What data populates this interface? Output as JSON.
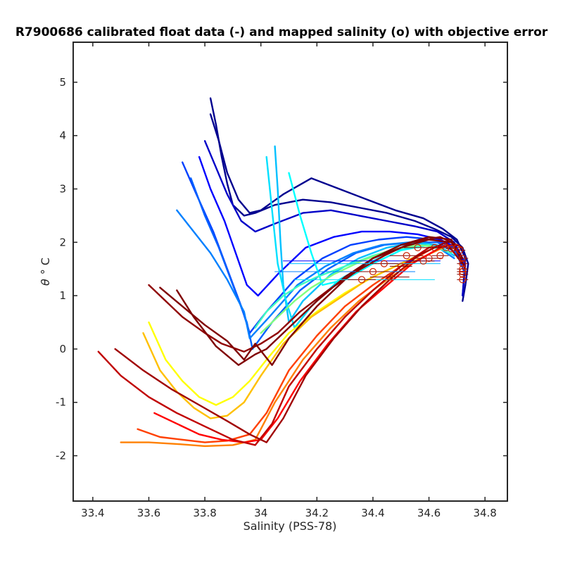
{
  "chart_data": {
    "type": "line",
    "title": "R7900686 calibrated float data (-) and mapped salinity (o) with objective error",
    "xlabel": "Salinity (PSS-78)",
    "ylabel_symbol": "θ",
    "ylabel_unit": "° C",
    "xlim": [
      33.33,
      34.88
    ],
    "ylim": [
      -2.85,
      5.75
    ],
    "xticks": [
      33.4,
      33.6,
      33.8,
      34,
      34.2,
      34.4,
      34.6,
      34.8
    ],
    "xtick_labels": [
      "33.4",
      "33.6",
      "33.8",
      "34",
      "34.2",
      "34.4",
      "34.6",
      "34.8"
    ],
    "yticks": [
      -2,
      -1,
      0,
      1,
      2,
      3,
      4,
      5
    ],
    "ytick_labels": [
      "-2",
      "-1",
      "0",
      "1",
      "2",
      "3",
      "4",
      "5"
    ],
    "grid": false,
    "legend": "none",
    "colormap": [
      "#00008f",
      "#0000ff",
      "#0080ff",
      "#00ffff",
      "#80ff80",
      "#ffff00",
      "#ff8000",
      "#ff0000",
      "#800000"
    ],
    "series": [
      {
        "color": "#00008f",
        "x": [
          33.82,
          33.84,
          33.86,
          33.88,
          33.9,
          33.94,
          33.98,
          34.05,
          34.15,
          34.25,
          34.35,
          34.45,
          34.55,
          34.62,
          34.68,
          34.72,
          34.74,
          34.73,
          34.72
        ],
        "y": [
          4.7,
          4.2,
          3.6,
          3.1,
          2.7,
          2.5,
          2.55,
          2.7,
          2.8,
          2.75,
          2.65,
          2.55,
          2.4,
          2.25,
          2.1,
          1.9,
          1.6,
          1.2,
          0.9
        ]
      },
      {
        "color": "#00008f",
        "x": [
          33.82,
          33.85,
          33.88,
          33.92,
          33.96,
          34.0,
          34.08,
          34.18,
          34.28,
          34.38,
          34.48,
          34.58,
          34.65,
          34.7,
          34.73,
          34.72
        ],
        "y": [
          4.4,
          3.9,
          3.3,
          2.8,
          2.55,
          2.6,
          2.9,
          3.2,
          3.0,
          2.8,
          2.6,
          2.45,
          2.25,
          2.05,
          1.7,
          1.0
        ]
      },
      {
        "color": "#0000c8",
        "x": [
          33.8,
          33.84,
          33.88,
          33.93,
          33.98,
          34.05,
          34.15,
          34.25,
          34.35,
          34.45,
          34.55,
          34.63,
          34.69,
          34.73,
          34.72
        ],
        "y": [
          3.9,
          3.4,
          2.9,
          2.4,
          2.2,
          2.35,
          2.55,
          2.6,
          2.5,
          2.4,
          2.3,
          2.2,
          2.0,
          1.6,
          1.0
        ]
      },
      {
        "color": "#0000ff",
        "x": [
          33.78,
          33.82,
          33.87,
          33.91,
          33.95,
          33.99,
          34.06,
          34.16,
          34.26,
          34.36,
          34.46,
          34.56,
          34.64,
          34.7,
          34.73
        ],
        "y": [
          3.6,
          3.0,
          2.4,
          1.8,
          1.2,
          1.0,
          1.4,
          1.9,
          2.1,
          2.2,
          2.2,
          2.15,
          2.05,
          1.9,
          1.5
        ]
      },
      {
        "color": "#0040ff",
        "x": [
          33.72,
          33.77,
          33.83,
          33.88,
          33.93,
          33.96,
          34.02,
          34.12,
          34.22,
          34.32,
          34.42,
          34.52,
          34.62,
          34.69,
          34.73
        ],
        "y": [
          3.5,
          2.9,
          2.2,
          1.5,
          0.8,
          0.3,
          0.7,
          1.3,
          1.7,
          1.95,
          2.05,
          2.1,
          2.05,
          1.9,
          1.4
        ]
      },
      {
        "color": "#0060ff",
        "x": [
          33.75,
          33.8,
          33.85,
          33.9,
          33.95,
          33.97,
          34.04,
          34.14,
          34.24,
          34.34,
          34.44,
          34.54,
          34.63,
          34.7
        ],
        "y": [
          3.2,
          2.5,
          1.9,
          1.2,
          0.5,
          0.0,
          0.5,
          1.1,
          1.5,
          1.8,
          1.95,
          2.0,
          2.0,
          1.8
        ]
      },
      {
        "color": "#0080ff",
        "x": [
          33.7,
          33.76,
          33.82,
          33.88,
          33.94,
          33.96,
          34.03,
          34.13,
          34.23,
          34.33,
          34.43,
          34.53,
          34.62,
          34.69
        ],
        "y": [
          2.6,
          2.2,
          1.8,
          1.3,
          0.7,
          0.2,
          0.6,
          1.2,
          1.55,
          1.8,
          1.95,
          2.0,
          1.95,
          1.7
        ]
      },
      {
        "color": "#00c0ff",
        "x": [
          34.05,
          34.06,
          34.07,
          34.08,
          34.1,
          34.15,
          34.25,
          34.35,
          34.45,
          34.55,
          34.63,
          34.69
        ],
        "y": [
          3.8,
          3.0,
          2.0,
          1.2,
          0.5,
          0.9,
          1.4,
          1.7,
          1.9,
          2.0,
          1.95,
          1.75
        ]
      },
      {
        "color": "#00e0ff",
        "x": [
          34.02,
          34.04,
          34.06,
          34.09,
          34.12,
          34.18,
          34.28,
          34.38,
          34.48,
          34.58,
          34.66
        ],
        "y": [
          3.6,
          2.6,
          1.6,
          0.9,
          0.4,
          0.8,
          1.3,
          1.6,
          1.85,
          1.95,
          1.85
        ]
      },
      {
        "color": "#00ffff",
        "x": [
          34.1,
          34.14,
          34.18,
          34.22,
          34.3,
          34.4,
          34.5,
          34.6,
          34.68
        ],
        "y": [
          3.3,
          2.5,
          1.8,
          1.2,
          1.3,
          1.6,
          1.85,
          1.95,
          1.8
        ]
      },
      {
        "color": "#40ffc0",
        "x": [
          33.98,
          34.02,
          34.08,
          34.14,
          34.2,
          34.3,
          34.4,
          34.5,
          34.6,
          34.68
        ],
        "y": [
          0.4,
          0.7,
          1.0,
          1.2,
          1.35,
          1.55,
          1.75,
          1.9,
          1.95,
          1.8
        ]
      },
      {
        "color": "#80ff80",
        "x": [
          34.0,
          34.06,
          34.12,
          34.18,
          34.26,
          34.36,
          34.46,
          34.56,
          34.65
        ],
        "y": [
          0.3,
          0.6,
          0.9,
          1.15,
          1.4,
          1.65,
          1.85,
          1.95,
          1.9
        ]
      },
      {
        "color": "#ffff00",
        "x": [
          33.6,
          33.66,
          33.72,
          33.78,
          33.84,
          33.9,
          33.96,
          34.02,
          34.1,
          34.2,
          34.3,
          34.4,
          34.5,
          34.6
        ],
        "y": [
          0.5,
          -0.2,
          -0.6,
          -0.9,
          -1.05,
          -0.9,
          -0.6,
          -0.2,
          0.3,
          0.7,
          1.05,
          1.35,
          1.6,
          1.85
        ]
      },
      {
        "color": "#ffc000",
        "x": [
          33.58,
          33.64,
          33.7,
          33.76,
          33.82,
          33.88,
          33.94,
          34.0,
          34.08,
          34.18,
          34.28,
          34.38,
          34.48,
          34.58
        ],
        "y": [
          0.3,
          -0.4,
          -0.8,
          -1.1,
          -1.3,
          -1.25,
          -1.0,
          -0.5,
          0.1,
          0.6,
          0.95,
          1.3,
          1.55,
          1.8
        ]
      },
      {
        "color": "#ff8000",
        "x": [
          33.5,
          33.6,
          33.7,
          33.8,
          33.9,
          33.98,
          34.05,
          34.15,
          34.25,
          34.35,
          34.45,
          34.55,
          34.65
        ],
        "y": [
          -1.75,
          -1.75,
          -1.78,
          -1.82,
          -1.8,
          -1.7,
          -1.0,
          -0.2,
          0.4,
          0.9,
          1.3,
          1.65,
          1.9
        ]
      },
      {
        "color": "#ff4000",
        "x": [
          33.56,
          33.64,
          33.72,
          33.8,
          33.88,
          33.96,
          34.02,
          34.1,
          34.2,
          34.3,
          34.4,
          34.5,
          34.6
        ],
        "y": [
          -1.5,
          -1.65,
          -1.7,
          -1.75,
          -1.72,
          -1.6,
          -1.2,
          -0.4,
          0.25,
          0.8,
          1.2,
          1.55,
          1.85
        ]
      },
      {
        "color": "#ff0000",
        "x": [
          33.62,
          33.7,
          33.78,
          33.86,
          33.94,
          34.0,
          34.06,
          34.14,
          34.24,
          34.34,
          34.44,
          34.54,
          34.64
        ],
        "y": [
          -1.2,
          -1.4,
          -1.6,
          -1.7,
          -1.75,
          -1.7,
          -1.3,
          -0.6,
          0.1,
          0.7,
          1.15,
          1.6,
          1.9
        ]
      },
      {
        "color": "#c00000",
        "x": [
          33.42,
          33.5,
          33.6,
          33.7,
          33.8,
          33.9,
          33.98,
          34.04,
          34.1,
          34.2,
          34.3,
          34.4,
          34.5,
          34.6,
          34.7
        ],
        "y": [
          -0.05,
          -0.5,
          -0.9,
          -1.2,
          -1.45,
          -1.7,
          -1.8,
          -1.4,
          -0.7,
          0.0,
          0.6,
          1.1,
          1.55,
          1.9,
          1.95
        ]
      },
      {
        "color": "#a00000",
        "x": [
          33.48,
          33.58,
          33.68,
          33.78,
          33.88,
          33.96,
          34.02,
          34.08,
          34.16,
          34.26,
          34.36,
          34.46,
          34.56,
          34.66,
          34.72
        ],
        "y": [
          0.0,
          -0.4,
          -0.75,
          -1.05,
          -1.35,
          -1.6,
          -1.75,
          -1.3,
          -0.5,
          0.2,
          0.8,
          1.3,
          1.75,
          2.0,
          1.6
        ]
      },
      {
        "color": "#900000",
        "x": [
          33.6,
          33.66,
          33.72,
          33.8,
          33.86,
          33.94,
          34.0,
          34.06,
          34.14,
          34.24,
          34.34,
          34.44,
          34.54,
          34.64,
          34.72
        ],
        "y": [
          1.2,
          0.9,
          0.6,
          0.3,
          0.1,
          -0.05,
          0.1,
          0.3,
          0.7,
          1.1,
          1.45,
          1.75,
          2.0,
          2.1,
          1.9
        ]
      },
      {
        "color": "#800000",
        "x": [
          33.64,
          33.72,
          33.8,
          33.88,
          33.94,
          33.98,
          34.04,
          34.1,
          34.2,
          34.3,
          34.4,
          34.5,
          34.6,
          34.68,
          34.73
        ],
        "y": [
          1.15,
          0.8,
          0.45,
          0.15,
          -0.2,
          0.1,
          -0.3,
          0.2,
          0.8,
          1.3,
          1.7,
          1.95,
          2.1,
          2.05,
          1.5
        ]
      },
      {
        "color": "#800000",
        "x": [
          33.7,
          33.76,
          33.84,
          33.92,
          33.98,
          34.02,
          34.1,
          34.2,
          34.3,
          34.4,
          34.5,
          34.6,
          34.68,
          34.72
        ],
        "y": [
          1.1,
          0.6,
          0.05,
          -0.3,
          -0.1,
          0.0,
          0.4,
          0.9,
          1.35,
          1.7,
          1.9,
          2.05,
          2.0,
          1.7
        ]
      }
    ],
    "mapped_points": {
      "color": "#cc2200",
      "marker": "circle-open",
      "x": [
        34.36,
        34.4,
        34.44,
        34.46,
        34.5,
        34.52,
        34.56,
        34.58,
        34.6,
        34.62,
        34.64,
        34.66,
        34.68,
        34.7,
        34.71,
        34.72,
        34.72,
        34.72,
        34.72,
        34.72,
        34.72
      ],
      "y": [
        1.3,
        1.45,
        1.6,
        1.35,
        1.55,
        1.75,
        1.9,
        1.65,
        1.7,
        1.9,
        1.75,
        1.9,
        1.88,
        1.9,
        1.85,
        1.7,
        1.6,
        1.5,
        1.45,
        1.4,
        1.3
      ],
      "error_half_widths": [
        0.05,
        0.06,
        0.05,
        0.07,
        0.04,
        0.06,
        0.05,
        0.04,
        0.05,
        0.04,
        0.03,
        0.03,
        0.02,
        0.02,
        0.02,
        0.02,
        0.02,
        0.02,
        0.02,
        0.02,
        0.02
      ]
    },
    "extra_lines": [
      {
        "color": "#0000ff",
        "x": [
          34.08,
          34.64
        ],
        "y": [
          1.65,
          1.65
        ]
      },
      {
        "color": "#00c0ff",
        "x": [
          34.1,
          34.64
        ],
        "y": [
          1.6,
          1.6
        ]
      },
      {
        "color": "#00e0ff",
        "x": [
          34.12,
          34.62
        ],
        "y": [
          1.3,
          1.3
        ]
      },
      {
        "color": "#0080ff",
        "x": [
          34.05,
          34.55
        ],
        "y": [
          1.45,
          1.45
        ]
      }
    ]
  }
}
